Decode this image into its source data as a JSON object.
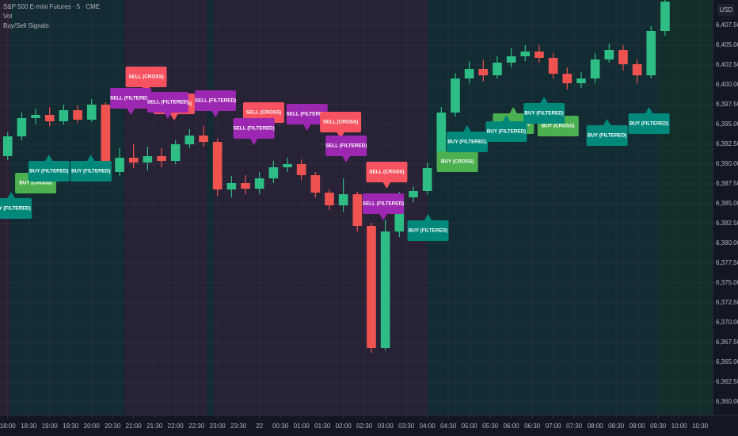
{
  "chart_data": {
    "type": "candlestick",
    "title": "S&P 500 E-mini Futures · 5 · CME",
    "indicators": [
      "Vol",
      "Buy/Sell Signals"
    ],
    "currency": "USD",
    "background": "#161a25",
    "up_color": "#2ebd85",
    "down_color": "#ef5350",
    "grid": true,
    "xlim": [
      -11,
      1008
    ],
    "ylim": [
      6358.5,
      6410.7
    ],
    "xticks": [
      {
        "value": 0,
        "label": "18:00"
      },
      {
        "value": 30,
        "label": "18:30"
      },
      {
        "value": 60,
        "label": "19:00"
      },
      {
        "value": 90,
        "label": "19:30"
      },
      {
        "value": 120,
        "label": "20:00"
      },
      {
        "value": 150,
        "label": "20:30"
      },
      {
        "value": 180,
        "label": "21:00"
      },
      {
        "value": 210,
        "label": "21:30"
      },
      {
        "value": 240,
        "label": "22:00"
      },
      {
        "value": 270,
        "label": "22:30"
      },
      {
        "value": 300,
        "label": "23:00"
      },
      {
        "value": 330,
        "label": "23:30"
      },
      {
        "value": 360,
        "label": "22"
      },
      {
        "value": 390,
        "label": "00:30"
      },
      {
        "value": 420,
        "label": "01:00"
      },
      {
        "value": 450,
        "label": "01:30"
      },
      {
        "value": 480,
        "label": "02:00"
      },
      {
        "value": 510,
        "label": "02:30"
      },
      {
        "value": 540,
        "label": "03:00"
      },
      {
        "value": 570,
        "label": "03:30"
      },
      {
        "value": 600,
        "label": "04:00"
      },
      {
        "value": 630,
        "label": "04:30"
      },
      {
        "value": 660,
        "label": "05:00"
      },
      {
        "value": 690,
        "label": "05:30"
      },
      {
        "value": 720,
        "label": "06:00"
      },
      {
        "value": 750,
        "label": "06:30"
      },
      {
        "value": 780,
        "label": "07:00"
      },
      {
        "value": 810,
        "label": "07:30"
      },
      {
        "value": 840,
        "label": "08:00"
      },
      {
        "value": 870,
        "label": "08:30"
      },
      {
        "value": 900,
        "label": "09:00"
      },
      {
        "value": 930,
        "label": "09:30"
      },
      {
        "value": 960,
        "label": "10:00"
      },
      {
        "value": 990,
        "label": "10:30"
      }
    ],
    "yticks": [
      {
        "value": 6360,
        "label": "6,360.00"
      },
      {
        "value": 6362.5,
        "label": "6,362.50"
      },
      {
        "value": 6365,
        "label": "6,365.00"
      },
      {
        "value": 6367.5,
        "label": "6,367.50"
      },
      {
        "value": 6370,
        "label": "6,370.00"
      },
      {
        "value": 6372.5,
        "label": "6,372.50"
      },
      {
        "value": 6375,
        "label": "6,375.00"
      },
      {
        "value": 6377.5,
        "label": "6,377.50"
      },
      {
        "value": 6380,
        "label": "6,380.00"
      },
      {
        "value": 6382.5,
        "label": "6,382.50"
      },
      {
        "value": 6385,
        "label": "6,385.00"
      },
      {
        "value": 6387.5,
        "label": "6,387.50"
      },
      {
        "value": 6390,
        "label": "6,390.00"
      },
      {
        "value": 6392.5,
        "label": "6,392.50"
      },
      {
        "value": 6395,
        "label": "6,395.00"
      },
      {
        "value": 6397.5,
        "label": "6,397.50"
      },
      {
        "value": 6400,
        "label": "6,400.00"
      },
      {
        "value": 6402.5,
        "label": "6,402.50"
      },
      {
        "value": 6405,
        "label": "6,405.00"
      },
      {
        "value": 6407.5,
        "label": "6,407.50"
      }
    ],
    "regions": [
      {
        "from": -11,
        "to": 4,
        "color": "#2d2334"
      },
      {
        "from": 4,
        "to": 167,
        "color": "#132f35"
      },
      {
        "from": 167,
        "to": 285,
        "color": "#2a2438"
      },
      {
        "from": 285,
        "to": 295,
        "color": "#132f35"
      },
      {
        "from": 295,
        "to": 600,
        "color": "#2a2438"
      },
      {
        "from": 600,
        "to": 930,
        "color": "#132f35"
      },
      {
        "from": 930,
        "to": 1008,
        "color": "#11332b"
      }
    ],
    "x": [
      0,
      20,
      40,
      60,
      80,
      100,
      120,
      140,
      160,
      180,
      200,
      220,
      240,
      260,
      280,
      300,
      320,
      340,
      360,
      380,
      400,
      420,
      440,
      460,
      480,
      500,
      520,
      540,
      560,
      580,
      600,
      620,
      640,
      660,
      680,
      700,
      720,
      740,
      760,
      780,
      800,
      820,
      840,
      860,
      880,
      900,
      920,
      940
    ],
    "open": [
      6391,
      6393.5,
      6395.8,
      6396.2,
      6395.4,
      6396.8,
      6395.6,
      6397.5,
      6389,
      6390.8,
      6390.2,
      6391,
      6390.4,
      6392.5,
      6393.6,
      6392.8,
      6386.8,
      6387.6,
      6386.9,
      6388.2,
      6389.6,
      6390,
      6388.6,
      6386.4,
      6384.8,
      6386.2,
      6382.2,
      6366.8,
      6381.5,
      6385.8,
      6386.6,
      6389.5,
      6396.5,
      6400.8,
      6402,
      6401.2,
      6402.8,
      6403.6,
      6404.2,
      6403.4,
      6401.4,
      6400.2,
      6400.8,
      6403.2,
      6404.4,
      6402.6,
      6401.2,
      6406.8
    ],
    "high": [
      6394,
      6396.5,
      6397,
      6397.2,
      6397.5,
      6397.4,
      6398.2,
      6397.8,
      6392,
      6392.5,
      6392.2,
      6392,
      6393,
      6394.4,
      6394.8,
      6393.2,
      6388.5,
      6388.6,
      6389,
      6390.4,
      6390.8,
      6390.6,
      6389,
      6386.8,
      6388.2,
      6386.5,
      6382.6,
      6383,
      6386.5,
      6387.2,
      6390.2,
      6397.2,
      6401.5,
      6403,
      6403.2,
      6403.6,
      6404.6,
      6405,
      6405,
      6404,
      6402.2,
      6401.6,
      6404,
      6405.2,
      6405,
      6403.2,
      6407.4,
      6411
    ],
    "low": [
      6390.5,
      6393,
      6395,
      6394.8,
      6395,
      6395.2,
      6395.3,
      6387.8,
      6388.5,
      6389.5,
      6389.2,
      6389.6,
      6390,
      6392,
      6392.2,
      6386,
      6385.8,
      6386.2,
      6386.2,
      6387.6,
      6389,
      6388,
      6385.8,
      6384.2,
      6384,
      6381.5,
      6366.2,
      6366.5,
      6380.8,
      6385.2,
      6386.2,
      6389.2,
      6396,
      6400.2,
      6400.4,
      6400.8,
      6402.2,
      6403,
      6402.8,
      6400.8,
      6399.4,
      6399.6,
      6400.2,
      6402.8,
      6401.8,
      6400.2,
      6400.8,
      6406.2
    ],
    "close": [
      6393.5,
      6395.8,
      6396.2,
      6395.4,
      6396.8,
      6395.6,
      6397.5,
      6389,
      6390.8,
      6390.2,
      6391,
      6390.4,
      6392.5,
      6393.6,
      6392.8,
      6386.8,
      6387.6,
      6386.9,
      6388.2,
      6389.6,
      6390,
      6388.6,
      6386.4,
      6384.8,
      6386.2,
      6382.2,
      6366.8,
      6381.5,
      6385.8,
      6386.6,
      6389.5,
      6396.5,
      6400.8,
      6402,
      6401.2,
      6402.8,
      6403.6,
      6404.2,
      6403.4,
      6401.4,
      6400.2,
      6400.8,
      6403.2,
      6404.4,
      6402.6,
      6401.2,
      6406.8,
      6410.5
    ],
    "sell_signals": [
      {
        "x": 198,
        "y": 6398.9,
        "label": "SELL (CROSS)",
        "color": "#f7525f"
      },
      {
        "x": 176,
        "y": 6396.2,
        "label": "SELL (FILTERED)",
        "color": "#9c27b0"
      },
      {
        "x": 238,
        "y": 6395.5,
        "label": "SELL (CROSS)",
        "color": "#f7525f"
      },
      {
        "x": 229,
        "y": 6395.7,
        "label": "SELL (FILTERED)",
        "color": "#9c27b0"
      },
      {
        "x": 297,
        "y": 6395.9,
        "label": "SELL (FILTERED)",
        "color": "#9c27b0"
      },
      {
        "x": 366,
        "y": 6394.4,
        "label": "SELL (CROSS)",
        "color": "#f7525f"
      },
      {
        "x": 352,
        "y": 6392.4,
        "label": "SELL (FILTERED)",
        "color": "#9c27b0"
      },
      {
        "x": 428,
        "y": 6394.2,
        "label": "SELL (FILTERED)",
        "color": "#9c27b0"
      },
      {
        "x": 476,
        "y": 6393.2,
        "label": "SELL (CROSS)",
        "color": "#f7525f"
      },
      {
        "x": 484,
        "y": 6390.2,
        "label": "SELL (FILTERED)",
        "color": "#9c27b0"
      },
      {
        "x": 542,
        "y": 6386.9,
        "label": "SELL (CROSS)",
        "color": "#f7525f"
      },
      {
        "x": 537,
        "y": 6382.9,
        "label": "SELL (FILTERED)",
        "color": "#9c27b0"
      }
    ],
    "buy_signals": [
      {
        "x": 40,
        "y": 6389.7,
        "label": "BUY (CROSS)",
        "color": "#4caf50"
      },
      {
        "x": 5,
        "y": 6386.5,
        "label": "BUY (FILTERED)",
        "color": "#00897b"
      },
      {
        "x": 59,
        "y": 6391.2,
        "label": "BUY (FILTERED)",
        "color": "#00897b"
      },
      {
        "x": 119,
        "y": 6391.2,
        "label": "BUY (FILTERED)",
        "color": "#00897b"
      },
      {
        "x": 601,
        "y": 6383.7,
        "label": "BUY (FILTERED)",
        "color": "#00897b"
      },
      {
        "x": 643,
        "y": 6392.4,
        "label": "BUY (CROSS)",
        "color": "#4caf50"
      },
      {
        "x": 657,
        "y": 6394.9,
        "label": "BUY (FILTERED)",
        "color": "#00897b"
      },
      {
        "x": 723,
        "y": 6397.2,
        "label": "BUY (CROSS)",
        "color": "#4caf50"
      },
      {
        "x": 713,
        "y": 6396.2,
        "label": "BUY (FILTERED)",
        "color": "#00897b"
      },
      {
        "x": 787,
        "y": 6396.9,
        "label": "BUY (CROSS)",
        "color": "#4caf50"
      },
      {
        "x": 767,
        "y": 6398.5,
        "label": "BUY (FILTERED)",
        "color": "#00897b"
      },
      {
        "x": 857,
        "y": 6395.7,
        "label": "BUY (FILTERED)",
        "color": "#00897b"
      },
      {
        "x": 917,
        "y": 6397.2,
        "label": "BUY (FILTERED)",
        "color": "#00897b"
      }
    ]
  }
}
